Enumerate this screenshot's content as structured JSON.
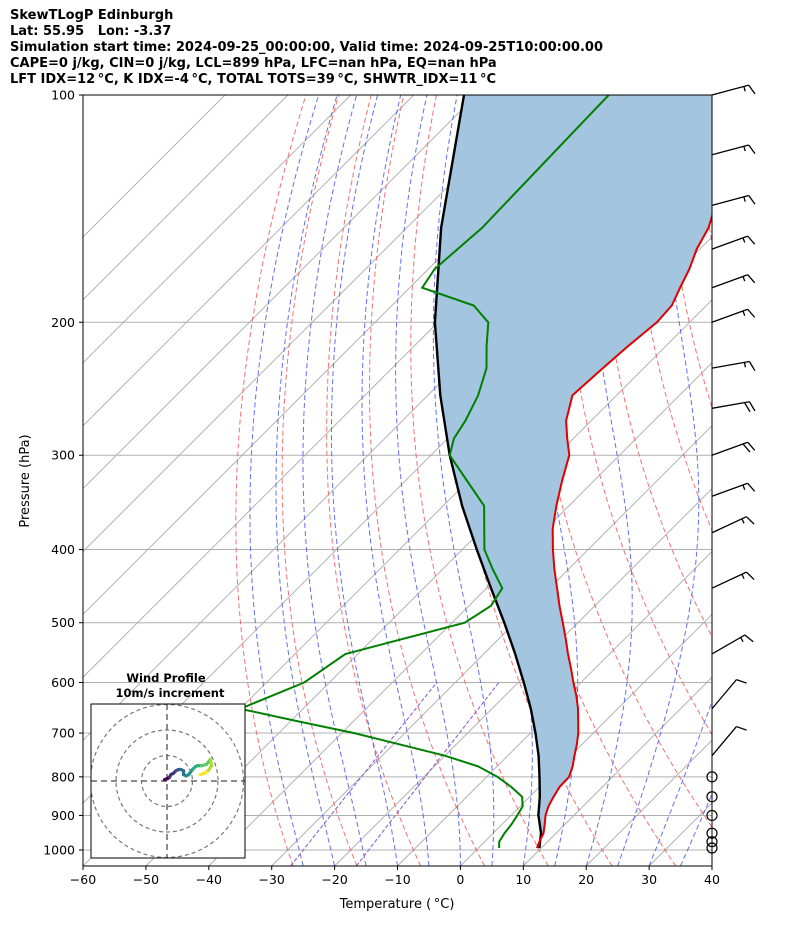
{
  "header": {
    "line1": "SkewTLogP Edinburgh",
    "line2": "Lat: 55.95   Lon: -3.37",
    "line3": "Simulation start time: 2024-09-25_00:00:00, Valid time: 2024-09-25T10:00:00.00",
    "line4": "CAPE=0 j/kg, CIN=0 j/kg, LCL=899 hPa, LFC=nan hPa, EQ=nan hPa",
    "line5": "LFT IDX=12 °C, K IDX=-4 °C, TOTAL TOTS=39 °C, SHWTR_IDX=11 °C"
  },
  "colors": {
    "temperature": "#e00000",
    "dewpoint": "#008000",
    "parcel": "#000000",
    "cin_cape_fill": "#a3c5df",
    "dry_adiabats": "#f06060",
    "moist_adiabats": "#5060f0",
    "mixing_ratio": "#8855cc",
    "isotherms": "#aaaaaa",
    "isobars": "#b0b0b0"
  },
  "chart_data": [
    {
      "type": "line",
      "subtype": "skewT-logP",
      "xlabel": "Temperature ( °C)",
      "ylabel": "Pressure (hPa)",
      "xlim": [
        -60,
        40
      ],
      "ylim": [
        1050,
        100
      ],
      "x_ticks": [
        -60,
        -50,
        -40,
        -30,
        -20,
        -10,
        0,
        10,
        20,
        30,
        40
      ],
      "x_tick_labels": [
        "−60",
        "−50",
        "−40",
        "−30",
        "−20",
        "−10",
        "0",
        "10",
        "20",
        "30",
        "40"
      ],
      "y_ticks": [
        1000,
        900,
        800,
        700,
        600,
        500,
        400,
        300,
        200,
        100
      ],
      "y_tick_labels": [
        "1000",
        "900",
        "800",
        "700",
        "600",
        "500",
        "400",
        "300",
        "200",
        "100"
      ],
      "y_scale": "log",
      "grid": true,
      "series": [
        {
          "key": "temperature",
          "pressure": [
            994,
            975,
            950,
            925,
            900,
            875,
            850,
            825,
            800,
            775,
            750,
            725,
            700,
            675,
            650,
            625,
            600,
            575,
            550,
            525,
            500,
            475,
            450,
            425,
            400,
            375,
            350,
            325,
            300,
            285,
            270,
            250,
            230,
            215,
            200,
            190,
            180,
            170,
            160,
            150,
            140,
            130,
            120,
            110,
            100
          ],
          "values": [
            9.3,
            8.7,
            8.0,
            6.8,
            5.5,
            4.5,
            3.8,
            3.2,
            3.1,
            2.0,
            0.6,
            -0.8,
            -2.4,
            -4.3,
            -6.3,
            -8.6,
            -11.2,
            -13.8,
            -16.6,
            -19.4,
            -22.4,
            -25.6,
            -28.8,
            -32.2,
            -35.6,
            -39.0,
            -42.0,
            -45.0,
            -48.0,
            -51.0,
            -54.0,
            -57.0,
            -56.5,
            -56.0,
            -55.2,
            -55.5,
            -57.0,
            -58.5,
            -60.5,
            -62.0,
            -64.5,
            -66.8,
            -68.8,
            -70.8,
            -72.8
          ]
        },
        {
          "key": "dewpoint",
          "pressure": [
            994,
            975,
            950,
            925,
            900,
            875,
            850,
            825,
            800,
            775,
            750,
            700,
            675,
            650,
            600,
            550,
            500,
            475,
            450,
            425,
            400,
            350,
            325,
            300,
            285,
            270,
            250,
            230,
            215,
            200,
            190,
            180,
            170,
            150,
            100
          ],
          "values": [
            3.3,
            2.3,
            1.8,
            1.5,
            1.0,
            0.4,
            -1.2,
            -4.5,
            -8.3,
            -13.0,
            -20.0,
            -38.0,
            -49.0,
            -60.0,
            -54.0,
            -52.0,
            -38.0,
            -36.5,
            -37.5,
            -42.0,
            -46.5,
            -53.5,
            -60.0,
            -67.0,
            -69.0,
            -70.0,
            -72.0,
            -75.0,
            -78.5,
            -82.0,
            -87.0,
            -98.0,
            -99.0,
            -98.0,
            -99.0
          ]
        },
        {
          "key": "parcel",
          "pressure": [
            994,
            950,
            899,
            850,
            800,
            750,
            700,
            650,
            600,
            550,
            500,
            450,
            400,
            350,
            300,
            250,
            200,
            150,
            100
          ],
          "values": [
            9.7,
            7.6,
            4.3,
            1.6,
            -1.6,
            -5.1,
            -9.2,
            -13.8,
            -19.1,
            -25.0,
            -31.7,
            -39.3,
            -47.7,
            -57.0,
            -67.0,
            -78.0,
            -90.5,
            -104.5,
            -122.0
          ]
        }
      ],
      "shaded_region": "CIN/CAPE between parcel and temperature",
      "wind_barbs": {
        "pressure": [
          100,
          120,
          140,
          160,
          180,
          200,
          230,
          260,
          300,
          340,
          380,
          450,
          550,
          650,
          750,
          800,
          850,
          900,
          950,
          975,
          994
        ],
        "speed_kt": [
          15,
          15,
          15,
          15,
          15,
          15,
          15,
          20,
          20,
          15,
          15,
          15,
          15,
          10,
          10,
          0,
          0,
          0,
          0,
          0,
          0
        ],
        "direction_deg": [
          255,
          255,
          255,
          250,
          250,
          250,
          260,
          260,
          250,
          250,
          245,
          245,
          240,
          220,
          220,
          0,
          0,
          0,
          0,
          0,
          0
        ]
      }
    },
    {
      "type": "scatter",
      "subtype": "hodograph",
      "title": "Wind Profile",
      "subtitle": "10m/s increment",
      "u": [
        -1.0,
        -0.3,
        0.3,
        1.0,
        1.5,
        2.5,
        3.5,
        4.5,
        5.5,
        6.5,
        6.5,
        7.5,
        8.5,
        10.0,
        11.0,
        12.0,
        13.5,
        15.5,
        17.0,
        17.5,
        16.5,
        15.5,
        14.5,
        13.0
      ],
      "v": [
        0.5,
        0.8,
        1.0,
        1.5,
        2.5,
        3.0,
        4.0,
        4.5,
        4.5,
        4.0,
        2.5,
        2.0,
        2.5,
        4.5,
        5.5,
        6.0,
        6.0,
        6.5,
        8.5,
        6.0,
        4.5,
        3.5,
        3.0,
        2.5
      ],
      "rings": [
        10,
        20,
        30
      ],
      "colormap": "viridis"
    }
  ]
}
